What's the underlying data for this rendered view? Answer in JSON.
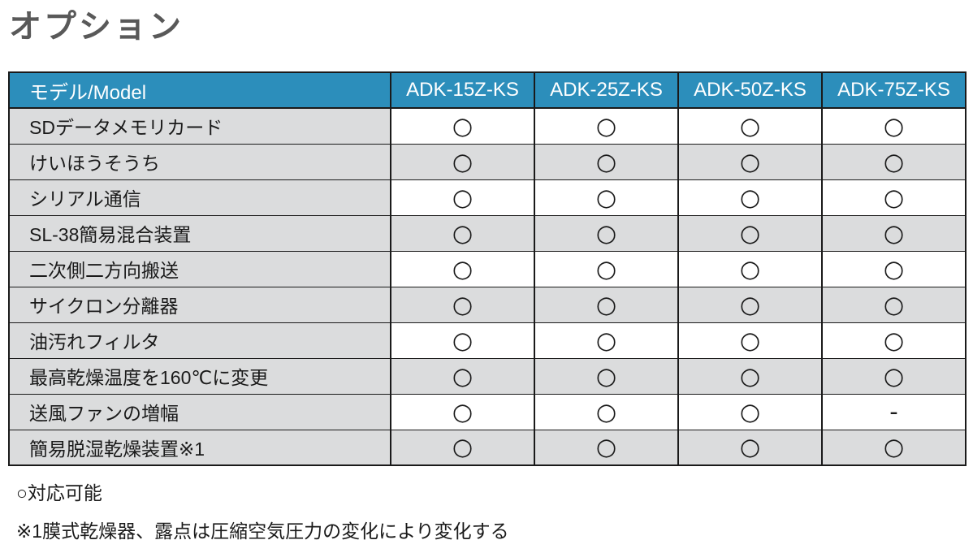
{
  "page": {
    "title": "オプション"
  },
  "table": {
    "header": {
      "model_label": "モデル/Model",
      "columns": [
        "ADK-15Z-KS",
        "ADK-25Z-KS",
        "ADK-50Z-KS",
        "ADK-75Z-KS"
      ]
    },
    "rows": [
      {
        "label": "SDデータメモリカード",
        "values": [
          "○",
          "○",
          "○",
          "○"
        ]
      },
      {
        "label": "けいほうそうち",
        "values": [
          "○",
          "○",
          "○",
          "○"
        ]
      },
      {
        "label": "シリアル通信",
        "values": [
          "○",
          "○",
          "○",
          "○"
        ]
      },
      {
        "label": "SL-38簡易混合装置",
        "values": [
          "○",
          "○",
          "○",
          "○"
        ]
      },
      {
        "label": "二次側二方向搬送",
        "values": [
          "○",
          "○",
          "○",
          "○"
        ]
      },
      {
        "label": "サイクロン分離器",
        "values": [
          "○",
          "○",
          "○",
          "○"
        ]
      },
      {
        "label": "油汚れフィルタ",
        "values": [
          "○",
          "○",
          "○",
          "○"
        ]
      },
      {
        "label": "最高乾燥温度を160℃に変更",
        "values": [
          "○",
          "○",
          "○",
          "○"
        ]
      },
      {
        "label": "送風ファンの増幅",
        "values": [
          "○",
          "○",
          "○",
          "-"
        ]
      },
      {
        "label": "簡易脱湿乾燥装置※1",
        "values": [
          "○",
          "○",
          "○",
          "○"
        ]
      }
    ]
  },
  "legend": {
    "available": "○対応可能",
    "note": "※1膜式乾燥器、露点は圧縮空気圧力の変化により変化する"
  },
  "colors": {
    "header_bg": "#2C8EBB",
    "row_alt_bg": "#DBDCDD",
    "title_color": "#595959",
    "border_color": "#1A1A1A"
  }
}
